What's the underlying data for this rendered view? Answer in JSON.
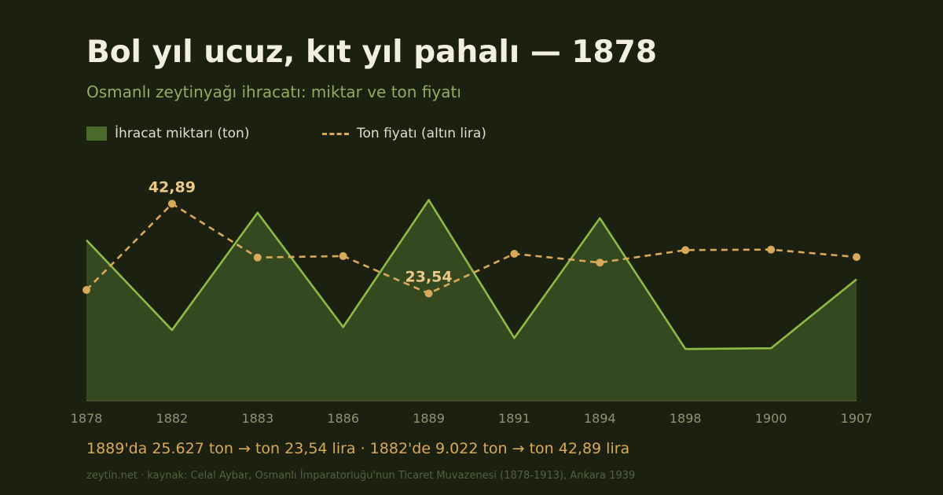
{
  "header": {
    "title": "Bol yıl ucuz, kıt yıl pahalı — 1878",
    "subtitle": "Osmanlı zeytinyağı ihracatı: miktar ve ton fiyatı"
  },
  "colors": {
    "background": "#1c2011",
    "area_fill": "#34491f",
    "area_line": "#8dbb45",
    "price_line": "#d9a95a",
    "annotation": "#ecc987",
    "tick": "#8e9473"
  },
  "chart_data": {
    "type": "area",
    "x": [
      "1878",
      "1882",
      "1883",
      "1886",
      "1889",
      "1891",
      "1894",
      "1898",
      "1900",
      "1907"
    ],
    "series": [
      {
        "name": "İhracat miktarı (ton)",
        "kind": "area",
        "values": [
          20500,
          9022,
          24000,
          9400,
          25627,
          8000,
          23300,
          6600,
          6700,
          15500
        ]
      },
      {
        "name": "Ton fiyatı (altın lira)",
        "kind": "dashed-line",
        "values": [
          24.3,
          42.89,
          31.3,
          31.6,
          23.54,
          32.1,
          30.2,
          32.9,
          33.0,
          31.4
        ]
      }
    ],
    "annotations": [
      {
        "series": 1,
        "index": 1,
        "text": "42,89"
      },
      {
        "series": 1,
        "index": 4,
        "text": "23,54"
      }
    ],
    "grid": false,
    "legend_position": "top-left"
  },
  "footer": {
    "summary": "1889'da 25.627 ton → ton 23,54 lira · 1882'de 9.022 ton → ton 42,89 lira",
    "source": "zeytin.net · kaynak: Celal Aybar, Osmanlı İmparatorluğu'nun Ticaret Muvazenesi (1878-1913), Ankara 1939"
  }
}
